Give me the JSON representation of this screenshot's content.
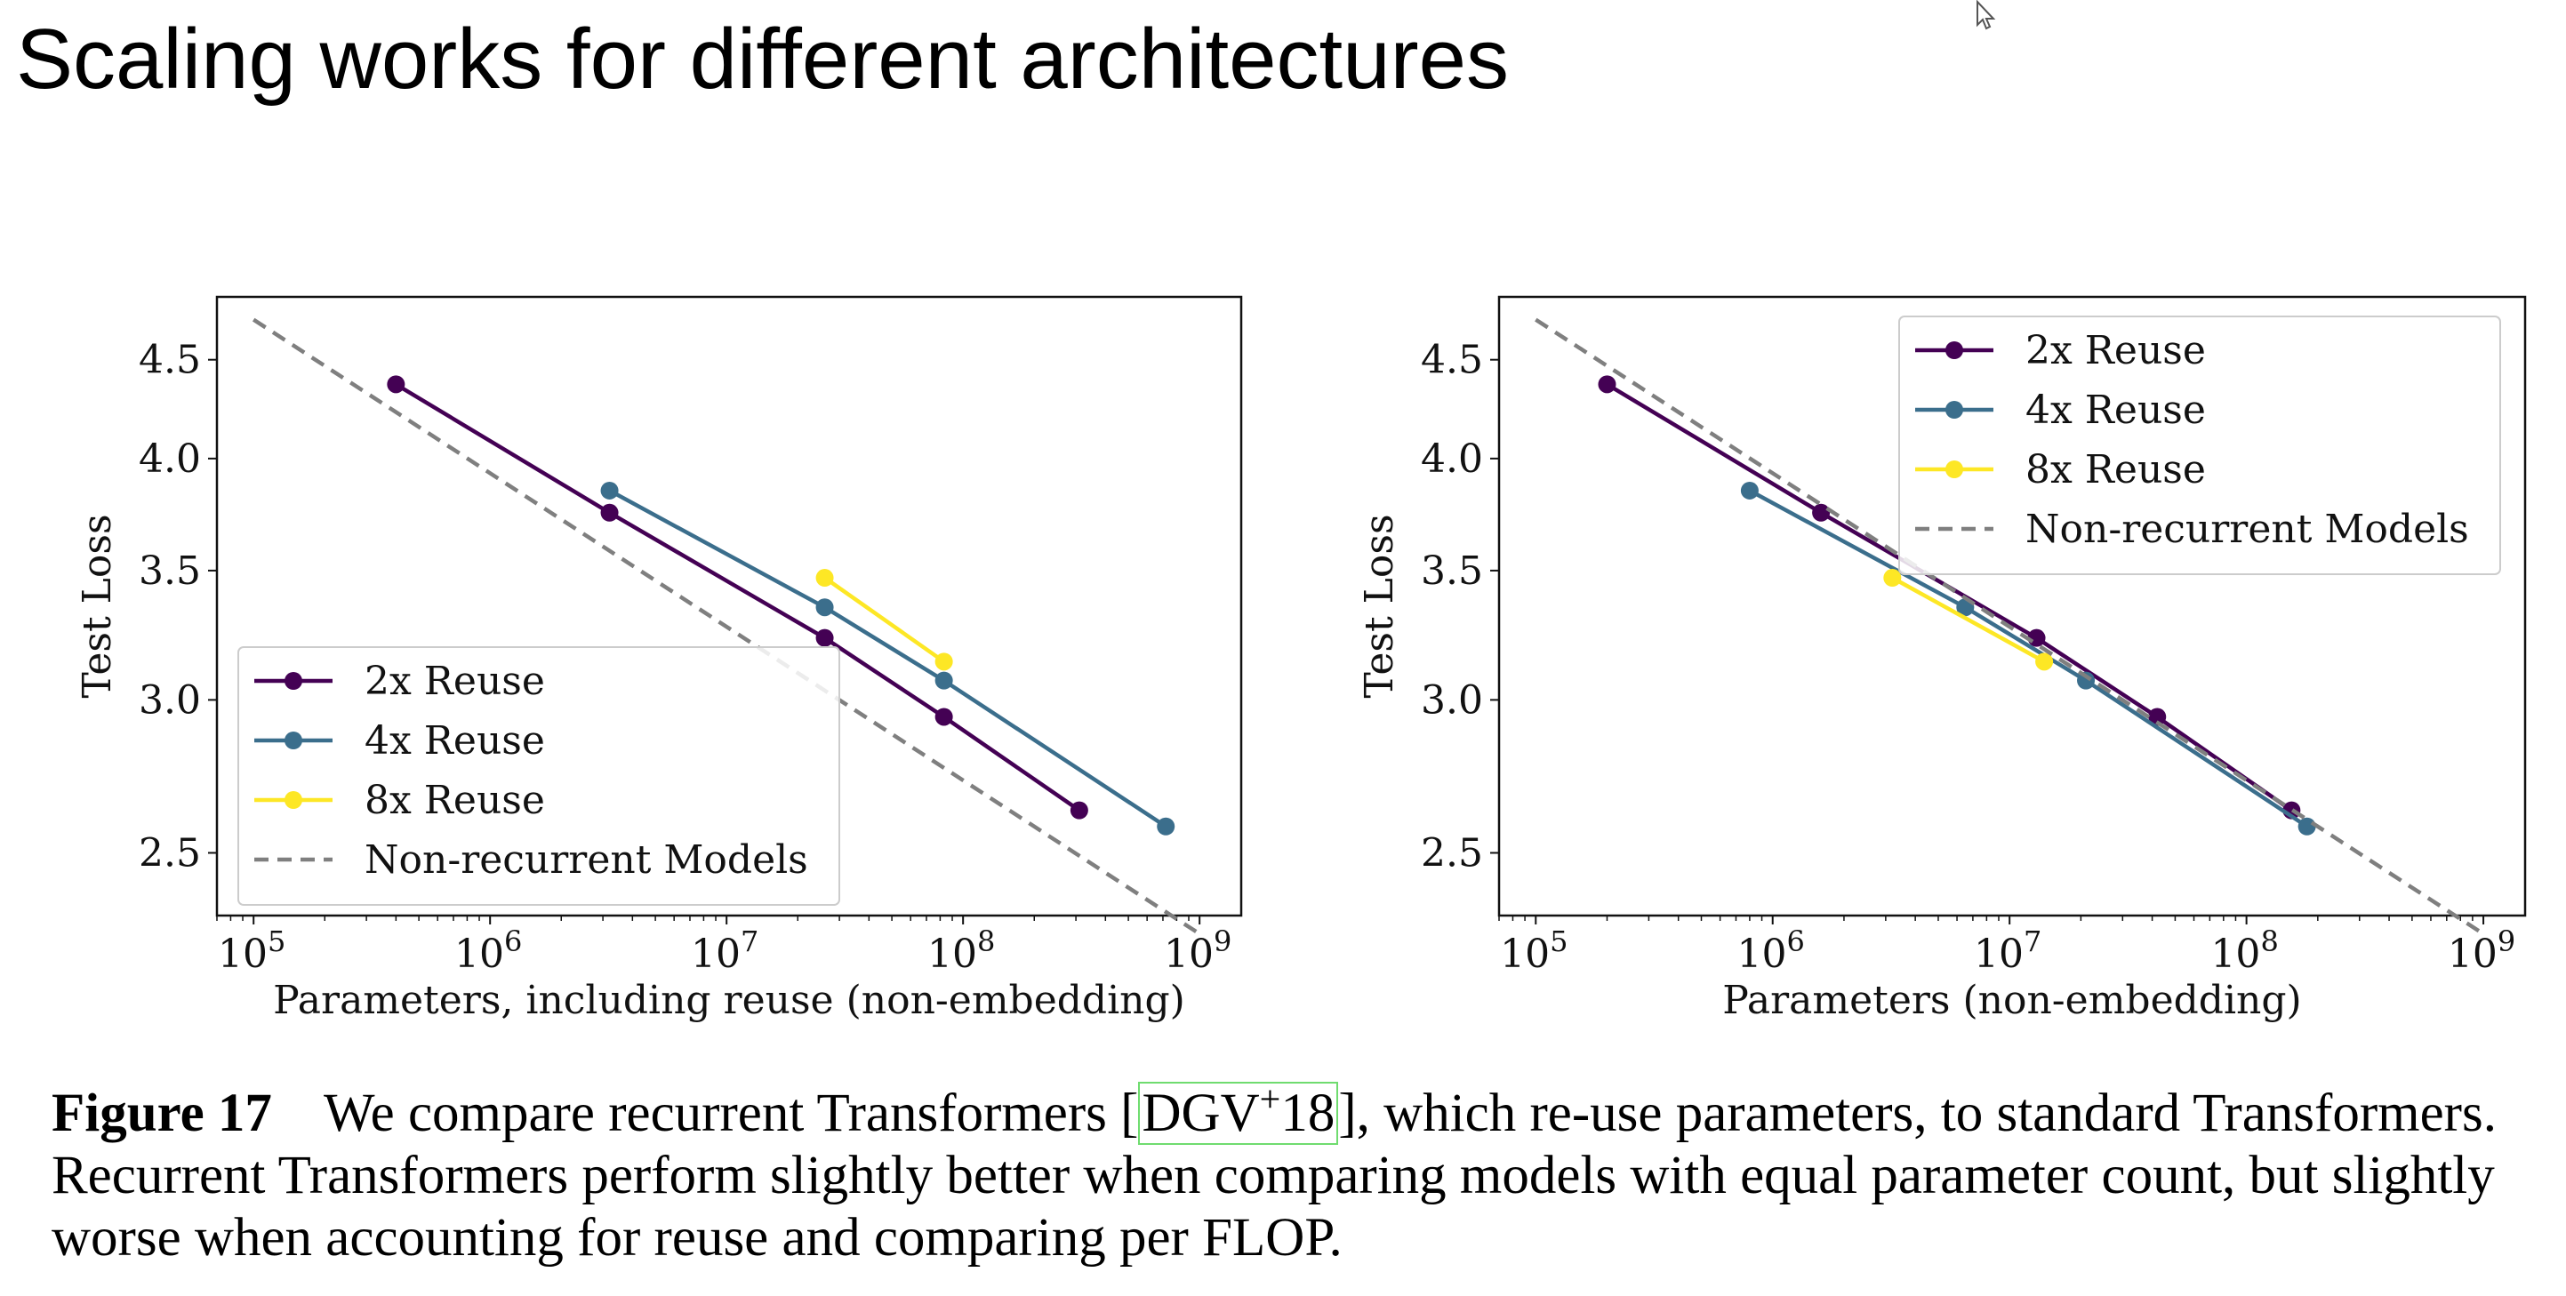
{
  "slide_title": "Scaling works for different architectures",
  "chart_data": [
    {
      "type": "line",
      "xscale": "log",
      "yscale": "log",
      "xlim": [
        70000,
        1500000000
      ],
      "ylim": [
        2.32,
        4.85
      ],
      "xticks": [
        100000,
        1000000,
        10000000,
        100000000,
        1000000000
      ],
      "xtick_labels": [
        {
          "base": "10",
          "exp": "5"
        },
        {
          "base": "10",
          "exp": "6"
        },
        {
          "base": "10",
          "exp": "7"
        },
        {
          "base": "10",
          "exp": "8"
        },
        {
          "base": "10",
          "exp": "9"
        }
      ],
      "yticks": [
        2.5,
        3.0,
        3.5,
        4.0,
        4.5
      ],
      "ytick_labels": [
        "2.5",
        "3.0",
        "3.5",
        "4.0",
        "4.5"
      ],
      "xlabel": "Parameters, including reuse (non-embedding)",
      "ylabel": "Test Loss",
      "legend_position": "lower-left",
      "series": [
        {
          "name": "2x Reuse",
          "color": "#440154",
          "style": "line-marker",
          "x": [
            400000,
            3200000,
            26000000,
            83000000,
            310000000
          ],
          "y": [
            4.37,
            3.75,
            3.23,
            2.94,
            2.63
          ]
        },
        {
          "name": "4x Reuse",
          "color": "#3b6e8c",
          "style": "line-marker",
          "x": [
            3200000,
            26000000,
            83000000,
            720000000
          ],
          "y": [
            3.85,
            3.35,
            3.07,
            2.58
          ]
        },
        {
          "name": "8x Reuse",
          "color": "#fde725",
          "style": "line-marker",
          "x": [
            26000000,
            83000000
          ],
          "y": [
            3.47,
            3.14
          ]
        },
        {
          "name": "Non-recurrent Models",
          "color": "#7f7f7f",
          "style": "dashed",
          "x": [
            100000,
            1000000000
          ],
          "y": [
            4.72,
            2.27
          ]
        }
      ]
    },
    {
      "type": "line",
      "xscale": "log",
      "yscale": "log",
      "xlim": [
        70000,
        1500000000
      ],
      "ylim": [
        2.32,
        4.85
      ],
      "xticks": [
        100000,
        1000000,
        10000000,
        100000000,
        1000000000
      ],
      "xtick_labels": [
        {
          "base": "10",
          "exp": "5"
        },
        {
          "base": "10",
          "exp": "6"
        },
        {
          "base": "10",
          "exp": "7"
        },
        {
          "base": "10",
          "exp": "8"
        },
        {
          "base": "10",
          "exp": "9"
        }
      ],
      "yticks": [
        2.5,
        3.0,
        3.5,
        4.0,
        4.5
      ],
      "ytick_labels": [
        "2.5",
        "3.0",
        "3.5",
        "4.0",
        "4.5"
      ],
      "xlabel": "Parameters (non-embedding)",
      "ylabel": "Test Loss",
      "legend_position": "upper-right",
      "series": [
        {
          "name": "2x Reuse",
          "color": "#440154",
          "style": "line-marker",
          "x": [
            200000,
            1600000,
            13000000,
            42000000,
            155000000
          ],
          "y": [
            4.37,
            3.75,
            3.23,
            2.94,
            2.63
          ]
        },
        {
          "name": "4x Reuse",
          "color": "#3b6e8c",
          "style": "line-marker",
          "x": [
            800000,
            6500000,
            21000000,
            180000000
          ],
          "y": [
            3.85,
            3.35,
            3.07,
            2.58
          ]
        },
        {
          "name": "8x Reuse",
          "color": "#fde725",
          "style": "line-marker",
          "x": [
            3200000,
            14000000
          ],
          "y": [
            3.47,
            3.14
          ]
        },
        {
          "name": "Non-recurrent Models",
          "color": "#7f7f7f",
          "style": "dashed",
          "x": [
            100000,
            1000000000
          ],
          "y": [
            4.72,
            2.27
          ]
        }
      ]
    }
  ],
  "caption": {
    "figure_label": "Figure 17",
    "text_before_cite": "We compare recurrent Transformers [",
    "cite_base": "DGV",
    "cite_sup": "+",
    "cite_suffix": "18",
    "text_after_cite": "], which re-use parameters, to standard Transformers. Recurrent Transformers perform slightly better when comparing models with equal parameter count, but slightly worse when accounting for reuse and comparing per FLOP."
  }
}
